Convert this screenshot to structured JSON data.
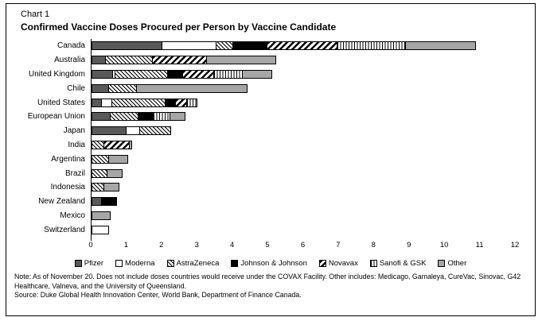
{
  "figure": {
    "chart_label": "Chart 1",
    "title": "Confirmed Vaccine Doses Procured per Person by Vaccine Candidate",
    "note": "Note: As of November 20. Does not include doses countries would receive under the COVAX Facility. Other includes: Medicago, Gamaleya, CureVac, Sinovac, G42 Healthcare, Valneva, and the University of Queensland.",
    "source": "Source: Duke Global Health Innovation Center, World Bank, Department of Finance Canada."
  },
  "colors": {
    "pfizer_dark_gray": "#595959",
    "other_medium_gray": "#a6a6a6",
    "johnson_black": "#000000",
    "moderna_white": "#ffffff",
    "border": "#000000"
  },
  "chart_data": {
    "type": "bar",
    "orientation": "horizontal",
    "stacked": true,
    "title": "Confirmed Vaccine Doses Procured per Person by Vaccine Candidate",
    "xlabel": "",
    "ylabel": "",
    "xlim": [
      0,
      12
    ],
    "xticks": [
      0,
      1,
      2,
      3,
      4,
      5,
      6,
      7,
      8,
      9,
      10,
      11,
      12
    ],
    "grid": false,
    "legend_position": "bottom",
    "categories": [
      "Canada",
      "Australia",
      "United Kingdom",
      "Chile",
      "United States",
      "European Union",
      "Japan",
      "India",
      "Argentina",
      "Brazil",
      "Indonesia",
      "New Zealand",
      "Mexico",
      "Switzerland"
    ],
    "series": [
      {
        "name": "Pfizer",
        "pattern": "solid-dark",
        "values": [
          2.0,
          0.4,
          0.6,
          0.5,
          0.3,
          0.55,
          1.0,
          0,
          0,
          0,
          0,
          0.3,
          0,
          0
        ]
      },
      {
        "name": "Moderna",
        "pattern": "solid-white",
        "values": [
          1.55,
          0,
          0.1,
          0,
          0.3,
          0,
          0.4,
          0,
          0,
          0,
          0,
          0,
          0,
          0.5
        ]
      },
      {
        "name": "AstraZeneca",
        "pattern": "hatch-back",
        "values": [
          0.5,
          1.35,
          1.5,
          0.8,
          1.55,
          0.8,
          0.9,
          0.35,
          0.5,
          0.45,
          0.35,
          0,
          0,
          0
        ]
      },
      {
        "name": "Johnson & Johnson",
        "pattern": "solid-black",
        "values": [
          1.0,
          0,
          0.45,
          0,
          0.3,
          0.45,
          0,
          0,
          0,
          0,
          0,
          0.45,
          0,
          0
        ]
      },
      {
        "name": "Novavax",
        "pattern": "hatch-forward",
        "values": [
          2.0,
          1.55,
          0.9,
          0,
          0.35,
          0,
          0,
          0.75,
          0,
          0,
          0,
          0,
          0,
          0
        ]
      },
      {
        "name": "Sanofi & GSK",
        "pattern": "vertical-lines",
        "values": [
          1.95,
          0,
          0.85,
          0,
          0.3,
          0.5,
          0,
          0,
          0,
          0,
          0,
          0,
          0,
          0
        ]
      },
      {
        "name": "Other",
        "pattern": "solid-gray",
        "values": [
          2.0,
          2.0,
          0.85,
          3.15,
          0,
          0.45,
          0,
          0.1,
          0.55,
          0.45,
          0.45,
          0,
          0.55,
          0
        ]
      }
    ],
    "totals": [
      11.0,
      5.3,
      5.25,
      4.45,
      3.1,
      2.75,
      2.3,
      1.2,
      1.05,
      0.9,
      0.8,
      0.75,
      0.55,
      0.5
    ]
  }
}
